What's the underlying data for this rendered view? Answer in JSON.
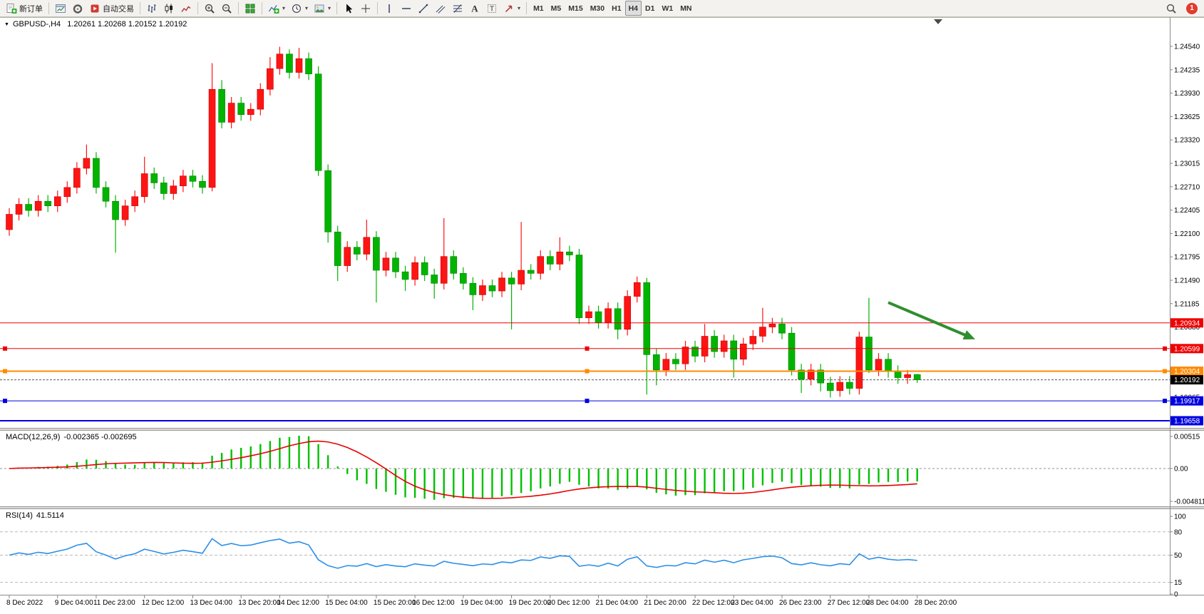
{
  "toolbar": {
    "items": [
      {
        "type": "button",
        "name": "new-order",
        "icon": "new-order",
        "label": "新订单"
      },
      {
        "type": "sep"
      },
      {
        "type": "button",
        "name": "chart-window",
        "icon": "chart-window"
      },
      {
        "type": "button",
        "name": "metaeditor",
        "icon": "metaeditor"
      },
      {
        "type": "button",
        "name": "autotrading",
        "icon": "autotrading",
        "label": "自动交易"
      },
      {
        "type": "sep"
      },
      {
        "type": "button",
        "name": "bar-chart",
        "icon": "bar-chart"
      },
      {
        "type": "button",
        "name": "candlestick-chart",
        "icon": "candlestick"
      },
      {
        "type": "button",
        "name": "line-chart",
        "icon": "line-chart"
      },
      {
        "type": "sep"
      },
      {
        "type": "button",
        "name": "zoom-in",
        "icon": "zoom-in"
      },
      {
        "type": "button",
        "name": "zoom-out",
        "icon": "zoom-out"
      },
      {
        "type": "sep"
      },
      {
        "type": "button",
        "name": "tile-windows",
        "icon": "tile-windows"
      },
      {
        "type": "sep"
      },
      {
        "type": "button",
        "name": "indicators-list",
        "icon": "indicators",
        "caret": true
      },
      {
        "type": "button",
        "name": "periods",
        "icon": "clock",
        "caret": true
      },
      {
        "type": "button",
        "name": "templates",
        "icon": "template",
        "caret": true
      },
      {
        "type": "sep"
      },
      {
        "type": "button",
        "name": "cursor",
        "icon": "cursor"
      },
      {
        "type": "button",
        "name": "crosshair",
        "icon": "crosshair"
      },
      {
        "type": "sep"
      },
      {
        "type": "button",
        "name": "draw-vertical-line",
        "icon": "vline"
      },
      {
        "type": "button",
        "name": "draw-horizontal-line",
        "icon": "hline"
      },
      {
        "type": "button",
        "name": "draw-trendline",
        "icon": "trendline"
      },
      {
        "type": "button",
        "name": "draw-channel",
        "icon": "channel"
      },
      {
        "type": "button",
        "name": "draw-fibonacci",
        "icon": "fibo"
      },
      {
        "type": "button",
        "name": "draw-text",
        "icon": "text"
      },
      {
        "type": "button",
        "name": "draw-text-label",
        "icon": "label"
      },
      {
        "type": "button",
        "name": "draw-arrows",
        "icon": "arrow",
        "caret": true
      },
      {
        "type": "sep"
      },
      {
        "type": "tf",
        "name": "timeframe-m1",
        "label": "M1"
      },
      {
        "type": "tf",
        "name": "timeframe-m5",
        "label": "M5"
      },
      {
        "type": "tf",
        "name": "timeframe-m15",
        "label": "M15"
      },
      {
        "type": "tf",
        "name": "timeframe-m30",
        "label": "M30"
      },
      {
        "type": "tf",
        "name": "timeframe-h1",
        "label": "H1"
      },
      {
        "type": "tf",
        "name": "timeframe-h4",
        "label": "H4",
        "active": true
      },
      {
        "type": "tf",
        "name": "timeframe-d1",
        "label": "D1"
      },
      {
        "type": "tf",
        "name": "timeframe-w1",
        "label": "W1"
      },
      {
        "type": "tf",
        "name": "timeframe-mn",
        "label": "MN"
      }
    ],
    "right_items": [
      {
        "type": "button",
        "name": "search",
        "icon": "search"
      },
      {
        "type": "badge",
        "name": "notifications",
        "label": "1"
      }
    ]
  },
  "chart": {
    "symbol_label": "GBPUSD-,H4",
    "ohlc_label": "1.20261 1.20268 1.20152 1.20192",
    "macd_label": "MACD(12,26,9)",
    "macd_values": "-0.002365 -0.002695",
    "rsi_label": "RSI(14)",
    "rsi_value": "41.5114"
  },
  "chart_data": {
    "type": "candlestick",
    "symbol": "GBPUSD-",
    "timeframe": "H4",
    "up_color": "#ff1414",
    "down_color": "#00b400",
    "current_bar": {
      "open": 1.20261,
      "high": 1.20268,
      "low": 1.20152,
      "close": 1.20192
    },
    "price_axis": {
      "min": 1.19658,
      "max": 1.2454,
      "step": 0.00305,
      "labels": [
        "1.24540",
        "1.24235",
        "1.23930",
        "1.23625",
        "1.23320",
        "1.23015",
        "1.22710",
        "1.22405",
        "1.22100",
        "1.21795",
        "1.21490",
        "1.21185",
        "1.20880",
        "1.19965"
      ]
    },
    "candles": [
      [
        1.2215,
        1.2243,
        1.2207,
        1.2235
      ],
      [
        1.2235,
        1.2256,
        1.2227,
        1.2248
      ],
      [
        1.2248,
        1.2256,
        1.2232,
        1.224
      ],
      [
        1.224,
        1.226,
        1.2232,
        1.2252
      ],
      [
        1.2252,
        1.226,
        1.2238,
        1.2246
      ],
      [
        1.2246,
        1.2266,
        1.2238,
        1.2258
      ],
      [
        1.2258,
        1.2278,
        1.225,
        1.227
      ],
      [
        1.227,
        1.2303,
        1.2262,
        1.2295
      ],
      [
        1.2295,
        1.2326,
        1.2287,
        1.2308
      ],
      [
        1.2308,
        1.2316,
        1.2262,
        1.227
      ],
      [
        1.227,
        1.2278,
        1.2244,
        1.2252
      ],
      [
        1.2252,
        1.226,
        1.2185,
        1.2228
      ],
      [
        1.2228,
        1.2254,
        1.222,
        1.2246
      ],
      [
        1.2246,
        1.2266,
        1.2238,
        1.2258
      ],
      [
        1.2258,
        1.231,
        1.225,
        1.2288
      ],
      [
        1.2288,
        1.2296,
        1.2268,
        1.2276
      ],
      [
        1.2276,
        1.2284,
        1.2254,
        1.2262
      ],
      [
        1.2262,
        1.228,
        1.2254,
        1.2272
      ],
      [
        1.2272,
        1.2293,
        1.2264,
        1.2285
      ],
      [
        1.2285,
        1.2293,
        1.227,
        1.2278
      ],
      [
        1.2278,
        1.2286,
        1.2262,
        1.227
      ],
      [
        1.227,
        1.2432,
        1.2265,
        1.2398
      ],
      [
        1.2398,
        1.241,
        1.2347,
        1.2355
      ],
      [
        1.2355,
        1.2388,
        1.2347,
        1.238
      ],
      [
        1.238,
        1.2388,
        1.2357,
        1.2365
      ],
      [
        1.2365,
        1.238,
        1.2357,
        1.2372
      ],
      [
        1.2372,
        1.2406,
        1.2364,
        1.2398
      ],
      [
        1.2398,
        1.244,
        1.239,
        1.2425
      ],
      [
        1.2425,
        1.24535,
        1.2417,
        1.2444
      ],
      [
        1.2444,
        1.245,
        1.2412,
        1.242
      ],
      [
        1.242,
        1.2452,
        1.2412,
        1.2438
      ],
      [
        1.2438,
        1.2446,
        1.241,
        1.2418
      ],
      [
        1.2418,
        1.2428,
        1.2285,
        1.2292
      ],
      [
        1.2292,
        1.23,
        1.2198,
        1.2212
      ],
      [
        1.2212,
        1.222,
        1.2148,
        1.2168
      ],
      [
        1.2168,
        1.22,
        1.216,
        1.2192
      ],
      [
        1.2192,
        1.22,
        1.2175,
        1.2183
      ],
      [
        1.2183,
        1.2228,
        1.2175,
        1.2205
      ],
      [
        1.2205,
        1.2213,
        1.212,
        1.2162
      ],
      [
        1.2162,
        1.2186,
        1.2154,
        1.2178
      ],
      [
        1.2178,
        1.2186,
        1.2152,
        1.216
      ],
      [
        1.216,
        1.2168,
        1.2135,
        1.215
      ],
      [
        1.215,
        1.218,
        1.2142,
        1.2172
      ],
      [
        1.2172,
        1.218,
        1.2148,
        1.2156
      ],
      [
        1.2156,
        1.2164,
        1.2125,
        1.2145
      ],
      [
        1.2145,
        1.223,
        1.2137,
        1.218
      ],
      [
        1.218,
        1.2188,
        1.215,
        1.2158
      ],
      [
        1.2158,
        1.2166,
        1.2137,
        1.2145
      ],
      [
        1.2145,
        1.2153,
        1.211,
        1.213
      ],
      [
        1.213,
        1.215,
        1.2122,
        1.2142
      ],
      [
        1.2142,
        1.215,
        1.2127,
        1.2135
      ],
      [
        1.2135,
        1.216,
        1.2127,
        1.2152
      ],
      [
        1.2152,
        1.216,
        1.2085,
        1.2144
      ],
      [
        1.2144,
        1.2225,
        1.2136,
        1.2162
      ],
      [
        1.2162,
        1.217,
        1.215,
        1.2158
      ],
      [
        1.2158,
        1.2188,
        1.215,
        1.218
      ],
      [
        1.218,
        1.2188,
        1.2162,
        1.217
      ],
      [
        1.217,
        1.2205,
        1.2162,
        1.2186
      ],
      [
        1.2186,
        1.2194,
        1.2174,
        1.2182
      ],
      [
        1.2182,
        1.219,
        1.2092,
        1.21
      ],
      [
        1.21,
        1.2116,
        1.2092,
        1.2108
      ],
      [
        1.2108,
        1.2116,
        1.2086,
        1.2094
      ],
      [
        1.2094,
        1.212,
        1.2086,
        1.2112
      ],
      [
        1.2112,
        1.212,
        1.2072,
        1.2085
      ],
      [
        1.2085,
        1.2136,
        1.2077,
        1.2128
      ],
      [
        1.2128,
        1.2154,
        1.212,
        1.2146
      ],
      [
        1.2146,
        1.2152,
        1.2,
        1.2052
      ],
      [
        1.2052,
        1.206,
        1.2012,
        1.2032
      ],
      [
        1.2032,
        1.2054,
        1.2024,
        1.2046
      ],
      [
        1.2046,
        1.2054,
        1.2032,
        1.204
      ],
      [
        1.204,
        1.207,
        1.2032,
        1.2062
      ],
      [
        1.2062,
        1.207,
        1.2042,
        1.205
      ],
      [
        1.205,
        1.2092,
        1.2042,
        1.2076
      ],
      [
        1.2076,
        1.2084,
        1.2048,
        1.2056
      ],
      [
        1.2056,
        1.2078,
        1.2048,
        1.207
      ],
      [
        1.207,
        1.2078,
        1.2022,
        1.2046
      ],
      [
        1.2046,
        1.2074,
        1.2038,
        1.2066
      ],
      [
        1.2066,
        1.2084,
        1.2058,
        1.2076
      ],
      [
        1.2076,
        1.2113,
        1.2068,
        1.2088
      ],
      [
        1.2088,
        1.21,
        1.208,
        1.2092
      ],
      [
        1.2092,
        1.21,
        1.2072,
        1.208
      ],
      [
        1.208,
        1.2088,
        1.2025,
        1.2032
      ],
      [
        1.2032,
        1.204,
        1.2002,
        1.202
      ],
      [
        1.202,
        1.204,
        1.2012,
        1.2032
      ],
      [
        1.2032,
        1.204,
        1.2004,
        1.2015
      ],
      [
        1.2015,
        1.2023,
        1.1996,
        1.2005
      ],
      [
        1.2005,
        1.2024,
        1.1997,
        1.2016
      ],
      [
        1.2016,
        1.2024,
        1.2,
        1.2008
      ],
      [
        1.2008,
        1.2082,
        1.2,
        1.2075
      ],
      [
        1.2075,
        1.2126,
        1.2028,
        1.2032
      ],
      [
        1.2032,
        1.2054,
        1.2024,
        1.2046
      ],
      [
        1.2046,
        1.2054,
        1.2022,
        1.203
      ],
      [
        1.203,
        1.2038,
        1.2014,
        1.2022
      ],
      [
        1.2022,
        1.2032,
        1.2014,
        1.2026
      ],
      [
        1.20261,
        1.20268,
        1.20152,
        1.20192
      ]
    ],
    "time_labels": [
      {
        "text": "8 Dec 2022",
        "i": 0
      },
      {
        "text": "9 Dec 04:00",
        "i": 5
      },
      {
        "text": "11 Dec 23:00",
        "i": 9
      },
      {
        "text": "12 Dec 12:00",
        "i": 14
      },
      {
        "text": "13 Dec 04:00",
        "i": 19
      },
      {
        "text": "13 Dec 20:00",
        "i": 24
      },
      {
        "text": "14 Dec 12:00",
        "i": 28
      },
      {
        "text": "15 Dec 04:00",
        "i": 33
      },
      {
        "text": "15 Dec 20:00",
        "i": 38
      },
      {
        "text": "16 Dec 12:00",
        "i": 42
      },
      {
        "text": "19 Dec 04:00",
        "i": 47
      },
      {
        "text": "19 Dec 20:00",
        "i": 52
      },
      {
        "text": "20 Dec 12:00",
        "i": 56
      },
      {
        "text": "21 Dec 04:00",
        "i": 61
      },
      {
        "text": "21 Dec 20:00",
        "i": 66
      },
      {
        "text": "22 Dec 12:00",
        "i": 71
      },
      {
        "text": "23 Dec 04:00",
        "i": 75
      },
      {
        "text": "26 Dec 23:00",
        "i": 80
      },
      {
        "text": "27 Dec 12:00",
        "i": 85
      },
      {
        "text": "28 Dec 04:00",
        "i": 89
      },
      {
        "text": "28 Dec 20:00",
        "i": 94
      }
    ],
    "horizontal_lines": [
      {
        "price": 1.20934,
        "label": "1.20934",
        "color": "#f00000",
        "width": 1,
        "handles": false
      },
      {
        "price": 1.20599,
        "label": "1.20599",
        "color": "#f00000",
        "width": 1,
        "handles": true
      },
      {
        "price": 1.20304,
        "label": "1.20304",
        "color": "#ff8a00",
        "width": 2,
        "handles": true
      },
      {
        "price": 1.19917,
        "label": "1.19917",
        "color": "#0000e0",
        "width": 1,
        "handles": true
      },
      {
        "price": 1.19658,
        "label": "1.19658",
        "color": "#0000e0",
        "width": 2,
        "handles": false
      }
    ],
    "current_price_line": {
      "price": 1.20192,
      "label": "1.20192",
      "color": "#000000"
    },
    "arrow_annotation": {
      "i1": 91,
      "p1": 1.212,
      "i2": 100,
      "p2": 1.2072,
      "color": "#2f8f2f"
    },
    "indicators": [
      {
        "name": "MACD",
        "params": "12,26,9",
        "values_label": "-0.002365 -0.002695",
        "axis_labels": [
          "0.00515",
          "0.00",
          "-0.004811"
        ],
        "histogram_color": "#00c000",
        "signal_color": "#e80000"
      },
      {
        "name": "RSI",
        "params": "14",
        "value_label": "41.5114",
        "axis_labels": [
          "100",
          "80",
          "50",
          "15",
          "0"
        ],
        "levels": [
          80,
          50,
          15
        ],
        "line_color": "#2b8fe8"
      }
    ]
  }
}
